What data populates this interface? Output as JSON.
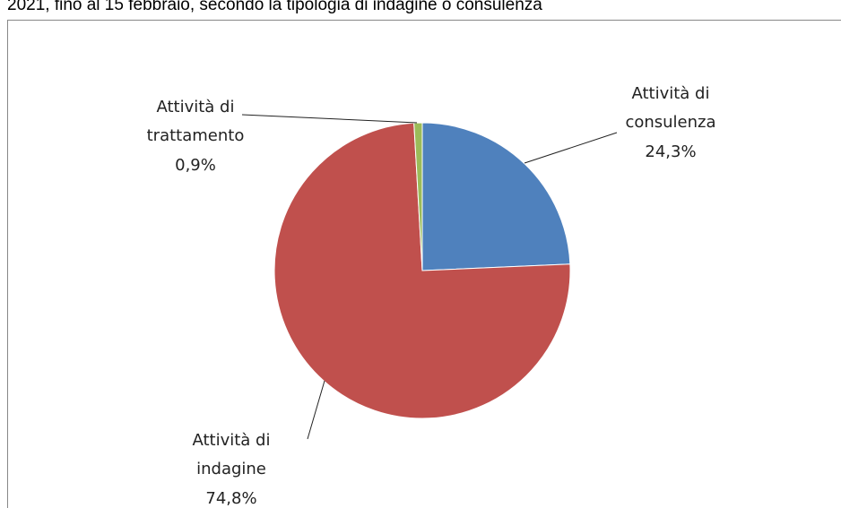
{
  "chart_data": {
    "type": "pie",
    "title": "2021, fino al 15 febbraio, secondo la tipologia di indagine o consulenza",
    "categories": [
      "Attività di consulenza",
      "Attività di indagine",
      "Attività di trattamento"
    ],
    "values": [
      24.3,
      74.8,
      0.9
    ],
    "value_labels": [
      "24,3%",
      "74,8%",
      "0,9%"
    ],
    "colors": [
      "#4f81bd",
      "#c0504d",
      "#9bbb59"
    ]
  }
}
